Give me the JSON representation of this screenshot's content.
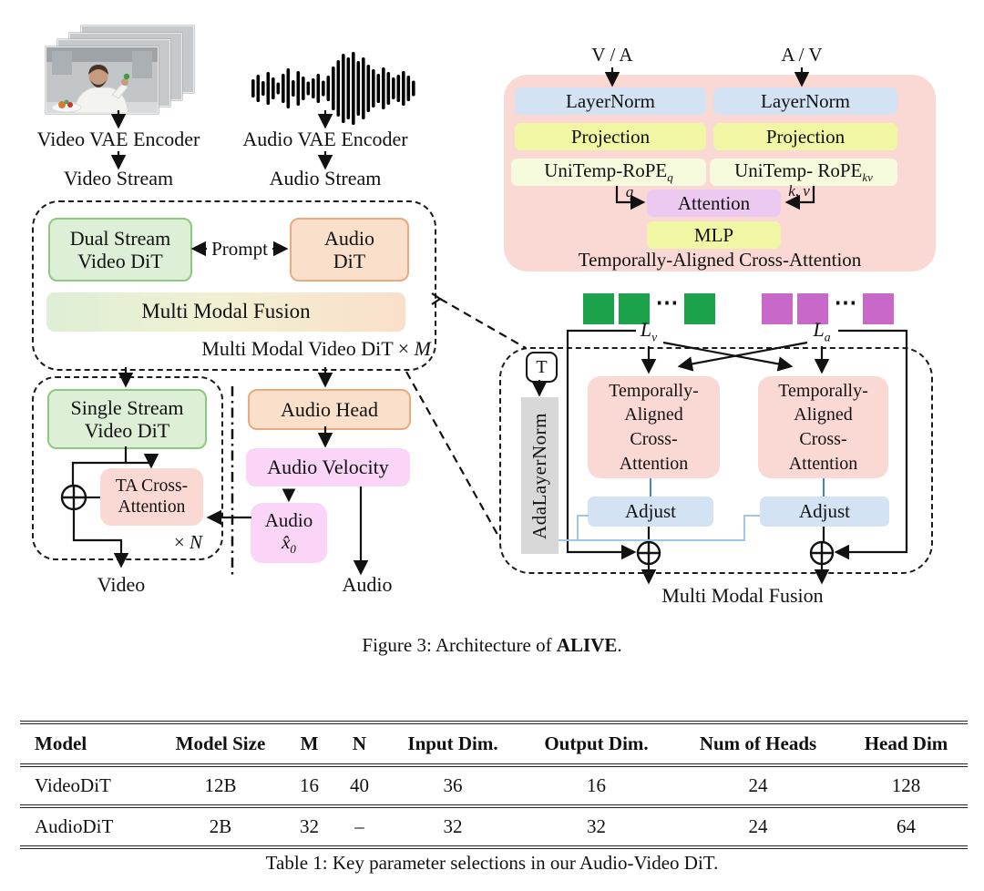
{
  "colors": {
    "green_fill": "#ddefd6",
    "green_border": "#8cc87d",
    "peach_fill": "#fadfca",
    "peach_border": "#eaa97e",
    "pink_fill": "#fad9d4",
    "magenta_fill": "#fad5f7",
    "blue_fill": "#d3e3f3",
    "yellow_fill": "#f1f6a4",
    "cream_fill": "#f7fbde",
    "purple_fill": "#ecc9f0",
    "gray_fill": "#d8d8d8",
    "green_sq": "#1ba24b",
    "magenta_sq": "#c868c8"
  },
  "inputs": {
    "video_vae_label": "Video VAE Encoder",
    "video_stream_label": "Video Stream",
    "audio_vae_label": "Audio VAE Encoder",
    "audio_stream_label": "Audio Stream"
  },
  "mm_block": {
    "dual_stream_line1": "Dual Stream",
    "dual_stream_line2": "Video DiT",
    "prompt_label": "Prompt",
    "audio_dit_line1": "Audio",
    "audio_dit_line2": "DiT",
    "fusion_label": "Multi Modal Fusion",
    "repeat_prefix": "Multi Modal Video DiT ×",
    "repeat_var": "M"
  },
  "video_branch": {
    "single_stream_line1": "Single Stream",
    "single_stream_line2": "Video DiT",
    "ta_cross_line1": "TA Cross-",
    "ta_cross_line2": "Attention",
    "repeat_prefix": "×",
    "repeat_var": "N",
    "output_label": "Video"
  },
  "audio_branch": {
    "audio_head": "Audio Head",
    "audio_velocity": "Audio Velocity",
    "audio_x0_line1": "Audio",
    "x0_base": "x̂",
    "x0_sub": "0",
    "output_label": "Audio"
  },
  "taca_panel": {
    "input_left": "V / A",
    "input_right": "A / V",
    "layernorm": "LayerNorm",
    "projection": "Projection",
    "unitemp_q_base": "UniTemp-RoPE",
    "unitemp_q_sub": "q",
    "unitemp_kv_base": "UniTemp- RoPE",
    "unitemp_kv_sub": "kv",
    "q_label": "q",
    "kv_label": "k, v",
    "attention": "Attention",
    "mlp": "MLP",
    "caption": "Temporally-Aligned Cross-Attention"
  },
  "detail_block": {
    "lv_base": "L",
    "lv_sub": "v",
    "la_base": "L",
    "la_sub": "a",
    "dots": "⋯",
    "t_label": "T",
    "adalayernorm": "AdaLayerNorm",
    "taca_lines": [
      "Temporally-",
      "Aligned",
      "Cross-",
      "Attention"
    ],
    "adjust": "Adjust",
    "fusion_label": "Multi Modal Fusion"
  },
  "figure_caption": {
    "prefix": "Figure 3: Architecture of ",
    "bold": "ALIVE",
    "suffix": "."
  },
  "table": {
    "headers": [
      "Model",
      "Model Size",
      "M",
      "N",
      "Input Dim.",
      "Output Dim.",
      "Num of Heads",
      "Head Dim"
    ],
    "rows": [
      [
        "VideoDiT",
        "12B",
        "16",
        "40",
        "36",
        "16",
        "24",
        "128"
      ],
      [
        "AudioDiT",
        "2B",
        "32",
        "–",
        "32",
        "32",
        "24",
        "64"
      ]
    ],
    "caption": "Table 1: Key parameter selections in our Audio-Video DiT."
  }
}
